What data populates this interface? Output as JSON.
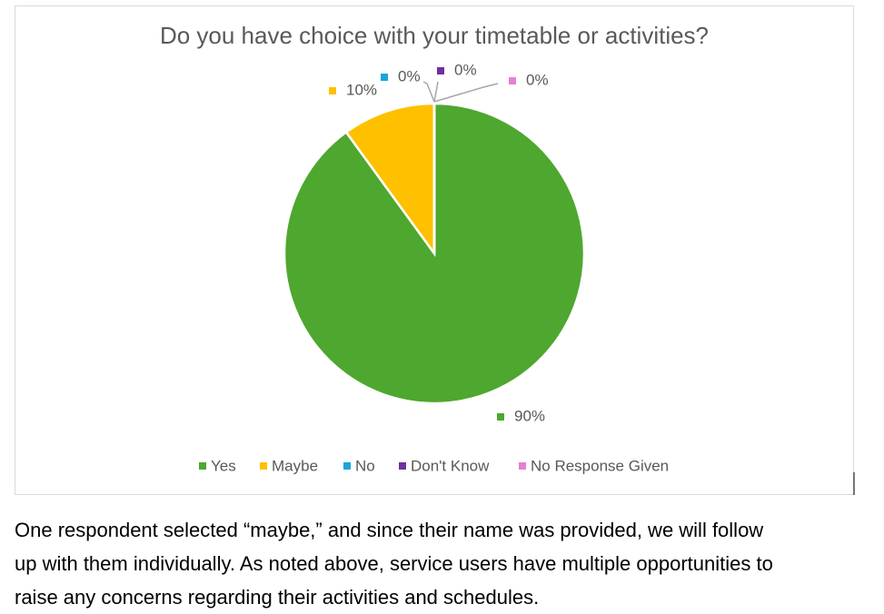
{
  "chart_data": {
    "type": "pie",
    "title": "Do you have choice with your timetable or activities?",
    "categories": [
      "Yes",
      "Maybe",
      "No",
      "Don't Know",
      "No Response Given"
    ],
    "values": [
      90,
      10,
      0,
      0,
      0
    ],
    "value_labels": [
      "90%",
      "10%",
      "0%",
      "0%",
      "0%"
    ],
    "colors": [
      "#4ea72e",
      "#ffc000",
      "#1aa6d9",
      "#7030a0",
      "#e97fd1"
    ],
    "legend": "bottom"
  },
  "paragraph": {
    "lines": [
      "One respondent selected “maybe,” and since their name was provided, we will follow",
      "up with them individually. As noted above, service users have multiple opportunities to",
      "raise any concerns regarding their activities and schedules."
    ]
  }
}
